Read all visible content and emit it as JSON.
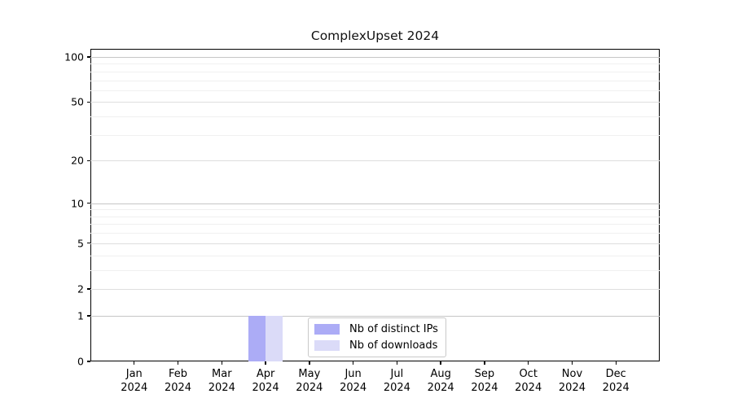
{
  "title": "ComplexUpset 2024",
  "colors": {
    "distinct_ips": "#acacf6",
    "downloads": "#dbdbf8",
    "axis": "#000000",
    "grid_decade": "#c6c6c6",
    "grid_major": "#dedede",
    "grid_minor": "#f0f0f0",
    "background": "#ffffff",
    "legend_border": "#c9c9c9"
  },
  "legend": {
    "items": [
      {
        "label": "Nb of distinct IPs",
        "color_key": "distinct_ips"
      },
      {
        "label": "Nb of downloads",
        "color_key": "downloads"
      }
    ]
  },
  "chart_data": {
    "type": "bar",
    "title": "ComplexUpset 2024",
    "categories": [
      "Jan 2024",
      "Feb 2024",
      "Mar 2024",
      "Apr 2024",
      "May 2024",
      "Jun 2024",
      "Jul 2024",
      "Aug 2024",
      "Sep 2024",
      "Oct 2024",
      "Nov 2024",
      "Dec 2024"
    ],
    "series": [
      {
        "name": "Nb of distinct IPs",
        "color_key": "distinct_ips",
        "values": [
          0,
          0,
          0,
          1,
          0,
          0,
          0,
          0,
          0,
          0,
          0,
          0
        ]
      },
      {
        "name": "Nb of downloads",
        "color_key": "downloads",
        "values": [
          0,
          0,
          0,
          1,
          0,
          0,
          0,
          0,
          0,
          0,
          0,
          0
        ]
      }
    ],
    "xlabel": "",
    "ylabel": "",
    "yscale": "log1p",
    "ylim": [
      0,
      100
    ],
    "yticks": [
      0,
      1,
      2,
      5,
      10,
      20,
      50,
      100
    ],
    "decade_ticks": [
      1,
      10,
      100
    ],
    "minor_gridlines": [
      3,
      4,
      6,
      7,
      8,
      9,
      30,
      40,
      60,
      70,
      80,
      90
    ],
    "grid": "horizontal",
    "legend_position": "bottom-center-inside"
  }
}
